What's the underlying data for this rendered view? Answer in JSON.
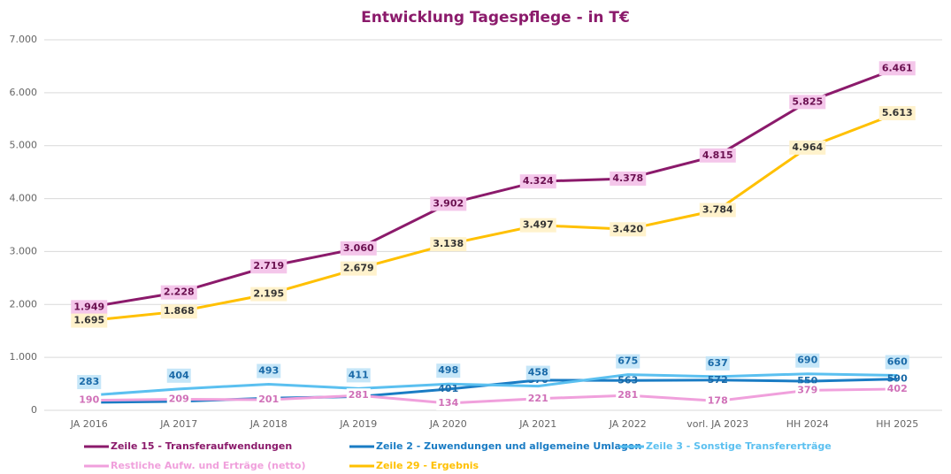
{
  "chart_data": {
    "type": "line",
    "title": "Entwicklung Tagespflege - in T€",
    "categories": [
      "JA 2016",
      "JA 2017",
      "JA 2018",
      "JA 2019",
      "JA 2020",
      "JA 2021",
      "JA 2022",
      "vorl. JA 2023",
      "HH 2024",
      "HH 2025"
    ],
    "ylim": [
      0,
      7000
    ],
    "yticks": [
      0,
      {
        "value": 1000,
        "label": "1.000"
      },
      {
        "value": 2000,
        "label": "2.000"
      },
      {
        "value": 3000,
        "label": "3.000"
      },
      {
        "value": 4000,
        "label": "4.000"
      },
      {
        "value": 5000,
        "label": "5.000"
      },
      {
        "value": 6000,
        "label": "6.000"
      },
      {
        "value": 7000,
        "label": "7.000"
      }
    ],
    "grid": true,
    "series": [
      {
        "name": "Zeile 15 - Transferaufwendungen",
        "color": "#8b1a6b",
        "values": [
          1949,
          2228,
          2719,
          3060,
          3902,
          4324,
          4378,
          4815,
          5825,
          6461
        ],
        "value_labels": [
          "1.949",
          "2.228",
          "2.719",
          "3.060",
          "3.902",
          "4.324",
          "4.378",
          "4.815",
          "5.825",
          "6.461"
        ]
      },
      {
        "name": "Zeile 2 - Zuwendungen und allgemeine Umlagen",
        "color": "#1a7cc4",
        "values": [
          150,
          170,
          230,
          260,
          401,
          570,
          563,
          572,
          550,
          590
        ],
        "value_labels": [
          null,
          null,
          null,
          null,
          "401",
          "570",
          "563",
          "572",
          "550",
          "590"
        ]
      },
      {
        "name": "Zeile 3 - Sonstige Transfererträge",
        "color": "#5bc0f0",
        "values": [
          283,
          404,
          493,
          411,
          498,
          458,
          675,
          637,
          690,
          660
        ],
        "value_labels": [
          "283",
          "404",
          "493",
          "411",
          "498",
          "458",
          "675",
          "637",
          "690",
          "660"
        ]
      },
      {
        "name": "Restliche Aufw. und Erträge (netto)",
        "color": "#f0a0dc",
        "values": [
          190,
          209,
          201,
          281,
          134,
          221,
          281,
          178,
          379,
          402
        ],
        "value_labels": [
          "190",
          "209",
          "201",
          "281",
          "134",
          "221",
          "281",
          "178",
          "379",
          "402"
        ]
      },
      {
        "name": "Zeile 29 - Ergebnis",
        "color": "#ffc000",
        "values": [
          1695,
          1868,
          2195,
          2679,
          3138,
          3497,
          3420,
          3784,
          4964,
          5613
        ],
        "value_labels": [
          "1.695",
          "1.868",
          "2.195",
          "2.679",
          "3.138",
          "3.497",
          "3.420",
          "3.784",
          "4.964",
          "5.613"
        ]
      }
    ]
  }
}
